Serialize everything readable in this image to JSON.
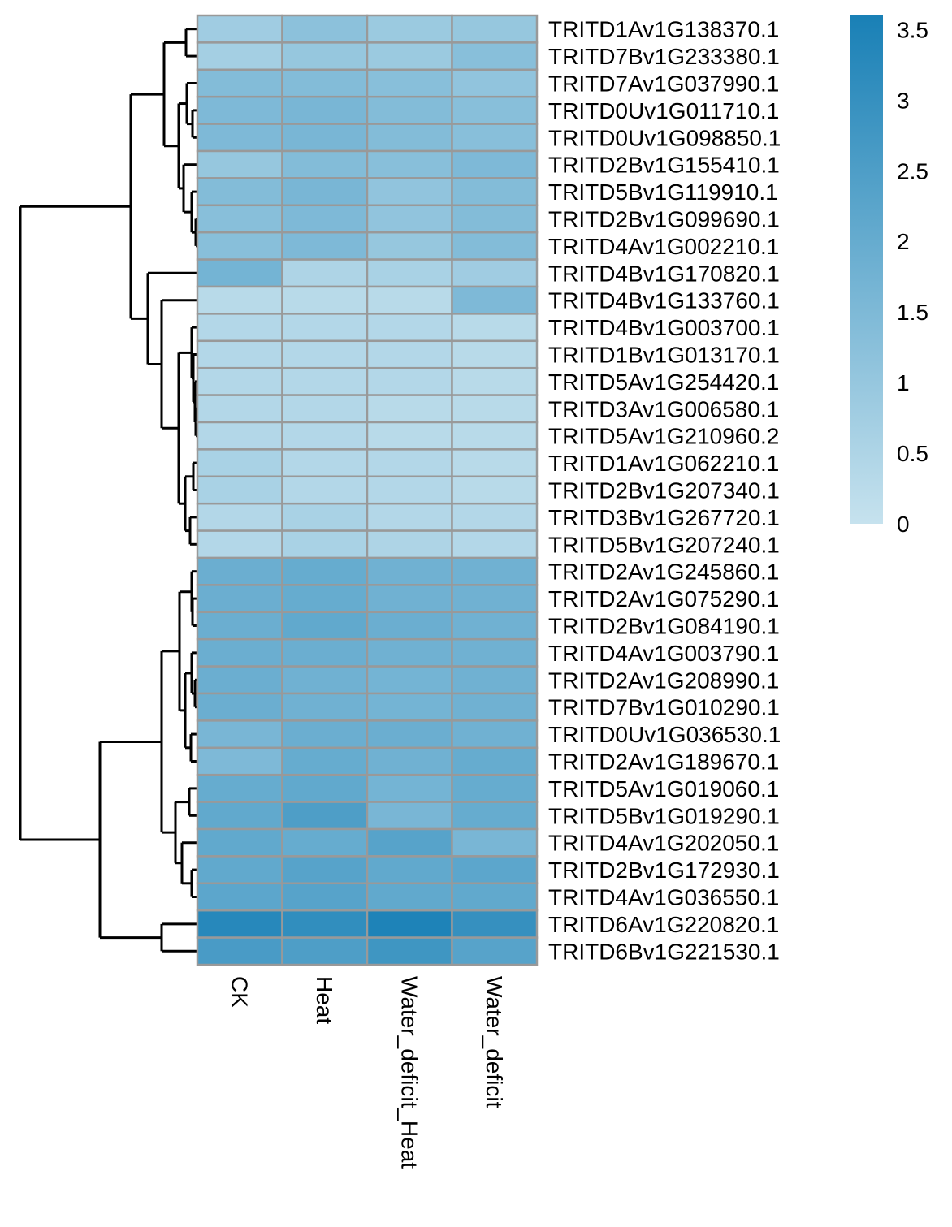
{
  "chart_data": {
    "type": "heatmap",
    "columns": [
      "CK",
      "Heat",
      "Water_deficit_Heat",
      "Water_deficit"
    ],
    "rows": [
      "TRITD1Av1G138370.1",
      "TRITD7Bv1G233380.1",
      "TRITD7Av1G037990.1",
      "TRITD0Uv1G011710.1",
      "TRITD0Uv1G098850.1",
      "TRITD2Bv1G155410.1",
      "TRITD5Bv1G119910.1",
      "TRITD2Bv1G099690.1",
      "TRITD4Av1G002210.1",
      "TRITD4Bv1G170820.1",
      "TRITD4Bv1G133760.1",
      "TRITD4Bv1G003700.1",
      "TRITD1Bv1G013170.1",
      "TRITD5Av1G254420.1",
      "TRITD3Av1G006580.1",
      "TRITD5Av1G210960.2",
      "TRITD1Av1G062210.1",
      "TRITD2Bv1G207340.1",
      "TRITD3Bv1G267720.1",
      "TRITD5Bv1G207240.1",
      "TRITD2Av1G245860.1",
      "TRITD2Av1G075290.1",
      "TRITD2Bv1G084190.1",
      "TRITD4Av1G003790.1",
      "TRITD2Av1G208990.1",
      "TRITD7Bv1G010290.1",
      "TRITD0Uv1G036530.1",
      "TRITD2Av1G189670.1",
      "TRITD5Av1G019060.1",
      "TRITD5Bv1G019290.1",
      "TRITD4Av1G202050.1",
      "TRITD2Bv1G172930.1",
      "TRITD4Av1G036550.1",
      "TRITD6Av1G220820.1",
      "TRITD6Bv1G221530.1"
    ],
    "values": [
      [
        0.8,
        1.2,
        0.9,
        1.0
      ],
      [
        0.7,
        1.0,
        0.9,
        1.3
      ],
      [
        1.4,
        1.4,
        1.3,
        1.1
      ],
      [
        1.5,
        1.6,
        1.4,
        1.3
      ],
      [
        1.5,
        1.6,
        1.4,
        1.3
      ],
      [
        1.0,
        1.4,
        1.3,
        1.5
      ],
      [
        1.4,
        1.6,
        1.1,
        1.4
      ],
      [
        1.3,
        1.5,
        1.1,
        1.4
      ],
      [
        1.3,
        1.5,
        1.0,
        1.4
      ],
      [
        1.7,
        0.5,
        0.6,
        0.8
      ],
      [
        0.3,
        0.3,
        0.3,
        1.5
      ],
      [
        0.4,
        0.4,
        0.4,
        0.3
      ],
      [
        0.4,
        0.4,
        0.4,
        0.3
      ],
      [
        0.4,
        0.4,
        0.4,
        0.3
      ],
      [
        0.4,
        0.4,
        0.3,
        0.3
      ],
      [
        0.4,
        0.4,
        0.3,
        0.3
      ],
      [
        0.6,
        0.4,
        0.4,
        0.3
      ],
      [
        0.6,
        0.4,
        0.4,
        0.3
      ],
      [
        0.4,
        0.6,
        0.4,
        0.4
      ],
      [
        0.4,
        0.6,
        0.5,
        0.4
      ],
      [
        1.9,
        2.0,
        1.8,
        1.8
      ],
      [
        1.9,
        2.0,
        1.8,
        1.8
      ],
      [
        1.9,
        2.1,
        1.9,
        1.8
      ],
      [
        1.9,
        1.9,
        1.8,
        1.8
      ],
      [
        1.9,
        1.8,
        1.7,
        1.8
      ],
      [
        1.9,
        1.8,
        1.7,
        1.8
      ],
      [
        1.6,
        1.9,
        1.9,
        1.8
      ],
      [
        1.5,
        2.0,
        1.8,
        2.0
      ],
      [
        2.0,
        2.1,
        1.7,
        2.0
      ],
      [
        2.1,
        2.5,
        1.6,
        2.0
      ],
      [
        2.1,
        2.0,
        2.3,
        1.6
      ],
      [
        2.1,
        2.3,
        2.1,
        2.2
      ],
      [
        2.2,
        2.3,
        2.1,
        2.1
      ],
      [
        3.3,
        3.1,
        3.5,
        3.0
      ],
      [
        2.6,
        2.5,
        2.8,
        2.3
      ]
    ],
    "colorbar": {
      "min": 0,
      "max": 3.6,
      "ticks": [
        0,
        0.5,
        1,
        1.5,
        2,
        2.5,
        3,
        3.5
      ],
      "tick_labels": [
        "0",
        "0.5",
        "1",
        "1.5",
        "2",
        "2.5",
        "3",
        "3.5"
      ],
      "low_color": "#c6e2ee",
      "high_color": "#1980b6"
    },
    "cell_border_color": "#999999",
    "row_dendrogram": true,
    "title": "",
    "xlabel": "",
    "ylabel": ""
  }
}
